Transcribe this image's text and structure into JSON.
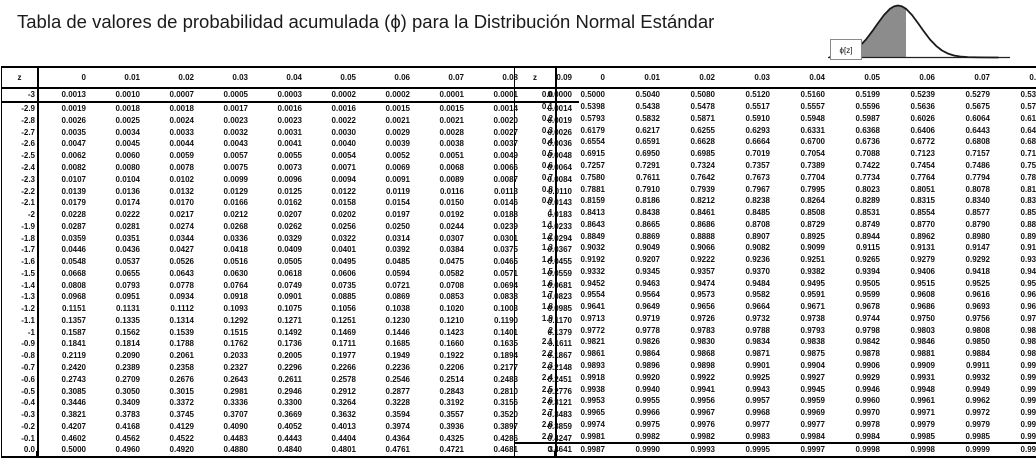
{
  "title": "Tabla de valores de probabilidad acumulada (ϕ) para la Distribución Normal Estándar",
  "figure": {
    "label": "ϕ[z]"
  },
  "table": {
    "columns": [
      "z",
      "0",
      "0.01",
      "0.02",
      "0.03",
      "0.04",
      "0.05",
      "0.06",
      "0.07",
      "0.08",
      "0.09"
    ]
  },
  "left_table": {
    "rows": [
      {
        "z": "-3",
        "values": [
          "0.0013",
          "0.0010",
          "0.0007",
          "0.0005",
          "0.0003",
          "0.0002",
          "0.0002",
          "0.0001",
          "0.0001",
          "0.0000"
        ]
      },
      {
        "z": "-2.9",
        "values": [
          "0.0019",
          "0.0018",
          "0.0018",
          "0.0017",
          "0.0016",
          "0.0016",
          "0.0015",
          "0.0015",
          "0.0014",
          "0.0014"
        ]
      },
      {
        "z": "-2.8",
        "values": [
          "0.0026",
          "0.0025",
          "0.0024",
          "0.0023",
          "0.0023",
          "0.0022",
          "0.0021",
          "0.0021",
          "0.0020",
          "0.0019"
        ]
      },
      {
        "z": "-2.7",
        "values": [
          "0.0035",
          "0.0034",
          "0.0033",
          "0.0032",
          "0.0031",
          "0.0030",
          "0.0029",
          "0.0028",
          "0.0027",
          "0.0026"
        ]
      },
      {
        "z": "-2.6",
        "values": [
          "0.0047",
          "0.0045",
          "0.0044",
          "0.0043",
          "0.0041",
          "0.0040",
          "0.0039",
          "0.0038",
          "0.0037",
          "0.0036"
        ]
      },
      {
        "z": "-2.5",
        "values": [
          "0.0062",
          "0.0060",
          "0.0059",
          "0.0057",
          "0.0055",
          "0.0054",
          "0.0052",
          "0.0051",
          "0.0049",
          "0.0048"
        ]
      },
      {
        "z": "-2.4",
        "values": [
          "0.0082",
          "0.0080",
          "0.0078",
          "0.0075",
          "0.0073",
          "0.0071",
          "0.0069",
          "0.0068",
          "0.0066",
          "0.0064"
        ]
      },
      {
        "z": "-2.3",
        "values": [
          "0.0107",
          "0.0104",
          "0.0102",
          "0.0099",
          "0.0096",
          "0.0094",
          "0.0091",
          "0.0089",
          "0.0087",
          "0.0084"
        ]
      },
      {
        "z": "-2.2",
        "values": [
          "0.0139",
          "0.0136",
          "0.0132",
          "0.0129",
          "0.0125",
          "0.0122",
          "0.0119",
          "0.0116",
          "0.0113",
          "0.0110"
        ]
      },
      {
        "z": "-2.1",
        "values": [
          "0.0179",
          "0.0174",
          "0.0170",
          "0.0166",
          "0.0162",
          "0.0158",
          "0.0154",
          "0.0150",
          "0.0146",
          "0.0143"
        ]
      },
      {
        "z": "-2",
        "values": [
          "0.0228",
          "0.0222",
          "0.0217",
          "0.0212",
          "0.0207",
          "0.0202",
          "0.0197",
          "0.0192",
          "0.0188",
          "0.0183"
        ]
      },
      {
        "z": "-1.9",
        "values": [
          "0.0287",
          "0.0281",
          "0.0274",
          "0.0268",
          "0.0262",
          "0.0256",
          "0.0250",
          "0.0244",
          "0.0239",
          "0.0233"
        ]
      },
      {
        "z": "-1.8",
        "values": [
          "0.0359",
          "0.0351",
          "0.0344",
          "0.0336",
          "0.0329",
          "0.0322",
          "0.0314",
          "0.0307",
          "0.0301",
          "0.0294"
        ]
      },
      {
        "z": "-1.7",
        "values": [
          "0.0446",
          "0.0436",
          "0.0427",
          "0.0418",
          "0.0409",
          "0.0401",
          "0.0392",
          "0.0384",
          "0.0375",
          "0.0367"
        ]
      },
      {
        "z": "-1.6",
        "values": [
          "0.0548",
          "0.0537",
          "0.0526",
          "0.0516",
          "0.0505",
          "0.0495",
          "0.0485",
          "0.0475",
          "0.0465",
          "0.0455"
        ]
      },
      {
        "z": "-1.5",
        "values": [
          "0.0668",
          "0.0655",
          "0.0643",
          "0.0630",
          "0.0618",
          "0.0606",
          "0.0594",
          "0.0582",
          "0.0571",
          "0.0559"
        ]
      },
      {
        "z": "-1.4",
        "values": [
          "0.0808",
          "0.0793",
          "0.0778",
          "0.0764",
          "0.0749",
          "0.0735",
          "0.0721",
          "0.0708",
          "0.0694",
          "0.0681"
        ]
      },
      {
        "z": "-1.3",
        "values": [
          "0.0968",
          "0.0951",
          "0.0934",
          "0.0918",
          "0.0901",
          "0.0885",
          "0.0869",
          "0.0853",
          "0.0838",
          "0.0823"
        ]
      },
      {
        "z": "-1.2",
        "values": [
          "0.1151",
          "0.1131",
          "0.1112",
          "0.1093",
          "0.1075",
          "0.1056",
          "0.1038",
          "0.1020",
          "0.1003",
          "0.0985"
        ]
      },
      {
        "z": "-1.1",
        "values": [
          "0.1357",
          "0.1335",
          "0.1314",
          "0.1292",
          "0.1271",
          "0.1251",
          "0.1230",
          "0.1210",
          "0.1190",
          "0.1170"
        ]
      },
      {
        "z": "-1",
        "values": [
          "0.1587",
          "0.1562",
          "0.1539",
          "0.1515",
          "0.1492",
          "0.1469",
          "0.1446",
          "0.1423",
          "0.1401",
          "0.1379"
        ]
      },
      {
        "z": "-0.9",
        "values": [
          "0.1841",
          "0.1814",
          "0.1788",
          "0.1762",
          "0.1736",
          "0.1711",
          "0.1685",
          "0.1660",
          "0.1635",
          "0.1611"
        ]
      },
      {
        "z": "-0.8",
        "values": [
          "0.2119",
          "0.2090",
          "0.2061",
          "0.2033",
          "0.2005",
          "0.1977",
          "0.1949",
          "0.1922",
          "0.1894",
          "0.1867"
        ]
      },
      {
        "z": "-0.7",
        "values": [
          "0.2420",
          "0.2389",
          "0.2358",
          "0.2327",
          "0.2296",
          "0.2266",
          "0.2236",
          "0.2206",
          "0.2177",
          "0.2148"
        ]
      },
      {
        "z": "-0.6",
        "values": [
          "0.2743",
          "0.2709",
          "0.2676",
          "0.2643",
          "0.2611",
          "0.2578",
          "0.2546",
          "0.2514",
          "0.2483",
          "0.2451"
        ]
      },
      {
        "z": "-0.5",
        "values": [
          "0.3085",
          "0.3050",
          "0.3015",
          "0.2981",
          "0.2946",
          "0.2912",
          "0.2877",
          "0.2843",
          "0.2810",
          "0.2776"
        ]
      },
      {
        "z": "-0.4",
        "values": [
          "0.3446",
          "0.3409",
          "0.3372",
          "0.3336",
          "0.3300",
          "0.3264",
          "0.3228",
          "0.3192",
          "0.3156",
          "0.3121"
        ]
      },
      {
        "z": "-0.3",
        "values": [
          "0.3821",
          "0.3783",
          "0.3745",
          "0.3707",
          "0.3669",
          "0.3632",
          "0.3594",
          "0.3557",
          "0.3520",
          "0.3483"
        ]
      },
      {
        "z": "-0.2",
        "values": [
          "0.4207",
          "0.4168",
          "0.4129",
          "0.4090",
          "0.4052",
          "0.4013",
          "0.3974",
          "0.3936",
          "0.3897",
          "0.3859"
        ]
      },
      {
        "z": "-0.1",
        "values": [
          "0.4602",
          "0.4562",
          "0.4522",
          "0.4483",
          "0.4443",
          "0.4404",
          "0.4364",
          "0.4325",
          "0.4286",
          "0.4247"
        ]
      },
      {
        "z": "0.0",
        "values": [
          "0.5000",
          "0.4960",
          "0.4920",
          "0.4880",
          "0.4840",
          "0.4801",
          "0.4761",
          "0.4721",
          "0.4681",
          "0.4641"
        ]
      }
    ]
  },
  "right_table": {
    "rows": [
      {
        "z": "0.0",
        "values": [
          "0.5000",
          "0.5040",
          "0.5080",
          "0.5120",
          "0.5160",
          "0.5199",
          "0.5239",
          "0.5279",
          "0.5319",
          "0.5359"
        ]
      },
      {
        "z": "0.1",
        "values": [
          "0.5398",
          "0.5438",
          "0.5478",
          "0.5517",
          "0.5557",
          "0.5596",
          "0.5636",
          "0.5675",
          "0.5714",
          "0.5753"
        ]
      },
      {
        "z": "0.2",
        "values": [
          "0.5793",
          "0.5832",
          "0.5871",
          "0.5910",
          "0.5948",
          "0.5987",
          "0.6026",
          "0.6064",
          "0.6103",
          "0.6141"
        ]
      },
      {
        "z": "0.3",
        "values": [
          "0.6179",
          "0.6217",
          "0.6255",
          "0.6293",
          "0.6331",
          "0.6368",
          "0.6406",
          "0.6443",
          "0.6480",
          "0.6517"
        ]
      },
      {
        "z": "0.4",
        "values": [
          "0.6554",
          "0.6591",
          "0.6628",
          "0.6664",
          "0.6700",
          "0.6736",
          "0.6772",
          "0.6808",
          "0.6844",
          "0.6879"
        ]
      },
      {
        "z": "0.5",
        "values": [
          "0.6915",
          "0.6950",
          "0.6985",
          "0.7019",
          "0.7054",
          "0.7088",
          "0.7123",
          "0.7157",
          "0.7190",
          "0.7224"
        ]
      },
      {
        "z": "0.6",
        "values": [
          "0.7257",
          "0.7291",
          "0.7324",
          "0.7357",
          "0.7389",
          "0.7422",
          "0.7454",
          "0.7486",
          "0.7517",
          "0.7549"
        ]
      },
      {
        "z": "0.7",
        "values": [
          "0.7580",
          "0.7611",
          "0.7642",
          "0.7673",
          "0.7704",
          "0.7734",
          "0.7764",
          "0.7794",
          "0.7823",
          "0.7852"
        ]
      },
      {
        "z": "0.8",
        "values": [
          "0.7881",
          "0.7910",
          "0.7939",
          "0.7967",
          "0.7995",
          "0.8023",
          "0.8051",
          "0.8078",
          "0.8106",
          "0.8133"
        ]
      },
      {
        "z": "0.9",
        "values": [
          "0.8159",
          "0.8186",
          "0.8212",
          "0.8238",
          "0.8264",
          "0.8289",
          "0.8315",
          "0.8340",
          "0.8365",
          "0.8389"
        ]
      },
      {
        "z": "1",
        "values": [
          "0.8413",
          "0.8438",
          "0.8461",
          "0.8485",
          "0.8508",
          "0.8531",
          "0.8554",
          "0.8577",
          "0.8599",
          "0.8621"
        ]
      },
      {
        "z": "1.1",
        "values": [
          "0.8643",
          "0.8665",
          "0.8686",
          "0.8708",
          "0.8729",
          "0.8749",
          "0.8770",
          "0.8790",
          "0.8810",
          "0.8830"
        ]
      },
      {
        "z": "1.2",
        "values": [
          "0.8849",
          "0.8869",
          "0.8888",
          "0.8907",
          "0.8925",
          "0.8944",
          "0.8962",
          "0.8980",
          "0.8997",
          "0.9015"
        ]
      },
      {
        "z": "1.3",
        "values": [
          "0.9032",
          "0.9049",
          "0.9066",
          "0.9082",
          "0.9099",
          "0.9115",
          "0.9131",
          "0.9147",
          "0.9162",
          "0.9177"
        ]
      },
      {
        "z": "1.4",
        "values": [
          "0.9192",
          "0.9207",
          "0.9222",
          "0.9236",
          "0.9251",
          "0.9265",
          "0.9279",
          "0.9292",
          "0.9306",
          "0.9319"
        ]
      },
      {
        "z": "1.5",
        "values": [
          "0.9332",
          "0.9345",
          "0.9357",
          "0.9370",
          "0.9382",
          "0.9394",
          "0.9406",
          "0.9418",
          "0.9429",
          "0.9441"
        ]
      },
      {
        "z": "1.6",
        "values": [
          "0.9452",
          "0.9463",
          "0.9474",
          "0.9484",
          "0.9495",
          "0.9505",
          "0.9515",
          "0.9525",
          "0.9535",
          "0.9545"
        ]
      },
      {
        "z": "1.7",
        "values": [
          "0.9554",
          "0.9564",
          "0.9573",
          "0.9582",
          "0.9591",
          "0.9599",
          "0.9608",
          "0.9616",
          "0.9625",
          "0.9633"
        ]
      },
      {
        "z": "1.8",
        "values": [
          "0.9641",
          "0.9649",
          "0.9656",
          "0.9664",
          "0.9671",
          "0.9678",
          "0.9686",
          "0.9693",
          "0.9699",
          "0.9706"
        ]
      },
      {
        "z": "1.9",
        "values": [
          "0.9713",
          "0.9719",
          "0.9726",
          "0.9732",
          "0.9738",
          "0.9744",
          "0.9750",
          "0.9756",
          "0.9761",
          "0.9767"
        ]
      },
      {
        "z": "2",
        "values": [
          "0.9772",
          "0.9778",
          "0.9783",
          "0.9788",
          "0.9793",
          "0.9798",
          "0.9803",
          "0.9808",
          "0.9812",
          "0.9817"
        ]
      },
      {
        "z": "2.1",
        "values": [
          "0.9821",
          "0.9826",
          "0.9830",
          "0.9834",
          "0.9838",
          "0.9842",
          "0.9846",
          "0.9850",
          "0.9854",
          "0.9857"
        ]
      },
      {
        "z": "2.2",
        "values": [
          "0.9861",
          "0.9864",
          "0.9868",
          "0.9871",
          "0.9875",
          "0.9878",
          "0.9881",
          "0.9884",
          "0.9887",
          "0.9890"
        ]
      },
      {
        "z": "2.3",
        "values": [
          "0.9893",
          "0.9896",
          "0.9898",
          "0.9901",
          "0.9904",
          "0.9906",
          "0.9909",
          "0.9911",
          "0.9913",
          "0.9916"
        ]
      },
      {
        "z": "2.4",
        "values": [
          "0.9918",
          "0.9920",
          "0.9922",
          "0.9925",
          "0.9927",
          "0.9929",
          "0.9931",
          "0.9932",
          "0.9934",
          "0.9936"
        ]
      },
      {
        "z": "2.5",
        "values": [
          "0.9938",
          "0.9940",
          "0.9941",
          "0.9943",
          "0.9945",
          "0.9946",
          "0.9948",
          "0.9949",
          "0.9951",
          "0.9952"
        ]
      },
      {
        "z": "2.6",
        "values": [
          "0.9953",
          "0.9955",
          "0.9956",
          "0.9957",
          "0.9959",
          "0.9960",
          "0.9961",
          "0.9962",
          "0.9963",
          "0.9964"
        ]
      },
      {
        "z": "2.7",
        "values": [
          "0.9965",
          "0.9966",
          "0.9967",
          "0.9968",
          "0.9969",
          "0.9970",
          "0.9971",
          "0.9972",
          "0.9973",
          "0.9974"
        ]
      },
      {
        "z": "2.8",
        "values": [
          "0.9974",
          "0.9975",
          "0.9976",
          "0.9977",
          "0.9977",
          "0.9978",
          "0.9979",
          "0.9979",
          "0.9980",
          "0.9981"
        ]
      },
      {
        "z": "2.9",
        "values": [
          "0.9981",
          "0.9982",
          "0.9982",
          "0.9983",
          "0.9984",
          "0.9984",
          "0.9985",
          "0.9985",
          "0.9986",
          "0.9986"
        ]
      },
      {
        "z": "3",
        "values": [
          "0.9987",
          "0.9990",
          "0.9993",
          "0.9995",
          "0.9997",
          "0.9998",
          "0.9998",
          "0.9999",
          "0.9999",
          "1.0000"
        ]
      }
    ]
  },
  "colors": {
    "text": "#1b1b1b",
    "table_border": "#000000",
    "curve_shade": "#8c8c8c"
  }
}
